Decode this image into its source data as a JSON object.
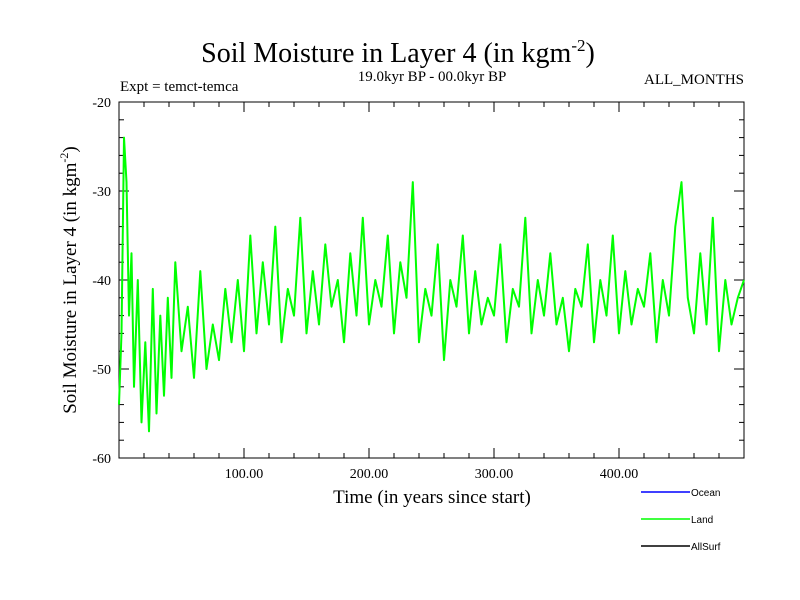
{
  "chart_data": {
    "type": "line",
    "title": "Soil Moisture in Layer 4 (in kgm",
    "title_sup": "-2",
    "title_close": ")",
    "subtitle": "19.0kyr BP - 00.0kyr BP",
    "expt_label": "Expt = temct-temca",
    "period_label": "ALL_MONTHS",
    "xlabel": "Time (in years since start)",
    "ylabel": "Soil Moisture in Layer 4 (in kgm",
    "ylabel_sup": "-2",
    "ylabel_close": ")",
    "xlim": [
      0,
      500
    ],
    "ylim": [
      -60,
      -20
    ],
    "x_ticks": [
      100,
      200,
      300,
      400
    ],
    "x_tick_labels": [
      "100.00",
      "200.00",
      "300.00",
      "400.00"
    ],
    "y_ticks": [
      -20,
      -30,
      -40,
      -50,
      -60
    ],
    "y_tick_labels": [
      "-20",
      "-30",
      "-40",
      "-50",
      "-60"
    ],
    "legend": [
      {
        "name": "Ocean",
        "color": "#0000ff"
      },
      {
        "name": "Land",
        "color": "#00ff00"
      },
      {
        "name": "AllSurf",
        "color": "#000000"
      }
    ],
    "series": [
      {
        "name": "Land",
        "color": "#00ff00",
        "x": [
          0,
          2,
          4,
          6,
          8,
          10,
          12,
          15,
          18,
          21,
          24,
          27,
          30,
          33,
          36,
          39,
          42,
          45,
          50,
          55,
          60,
          65,
          70,
          75,
          80,
          85,
          90,
          95,
          100,
          105,
          110,
          115,
          120,
          125,
          130,
          135,
          140,
          145,
          150,
          155,
          160,
          165,
          170,
          175,
          180,
          185,
          190,
          195,
          200,
          205,
          210,
          215,
          220,
          225,
          230,
          235,
          240,
          245,
          250,
          255,
          260,
          265,
          270,
          275,
          280,
          285,
          290,
          295,
          300,
          305,
          310,
          315,
          320,
          325,
          330,
          335,
          340,
          345,
          350,
          355,
          360,
          365,
          370,
          375,
          380,
          385,
          390,
          395,
          400,
          405,
          410,
          415,
          420,
          425,
          430,
          435,
          440,
          445,
          450,
          455,
          460,
          465,
          470,
          475,
          480,
          485,
          490,
          495,
          500
        ],
        "values": [
          -54,
          -46,
          -24,
          -29,
          -44,
          -37,
          -52,
          -40,
          -56,
          -47,
          -57,
          -41,
          -55,
          -44,
          -53,
          -42,
          -51,
          -38,
          -48,
          -43,
          -51,
          -39,
          -50,
          -45,
          -49,
          -41,
          -47,
          -40,
          -48,
          -35,
          -46,
          -38,
          -45,
          -34,
          -47,
          -41,
          -44,
          -33,
          -46,
          -39,
          -45,
          -36,
          -43,
          -40,
          -47,
          -37,
          -44,
          -33,
          -45,
          -40,
          -43,
          -35,
          -46,
          -38,
          -42,
          -29,
          -47,
          -41,
          -44,
          -36,
          -49,
          -40,
          -43,
          -35,
          -46,
          -39,
          -45,
          -42,
          -44,
          -36,
          -47,
          -41,
          -43,
          -33,
          -46,
          -40,
          -44,
          -37,
          -45,
          -42,
          -48,
          -41,
          -43,
          -36,
          -47,
          -40,
          -44,
          -35,
          -46,
          -39,
          -45,
          -41,
          -43,
          -37,
          -47,
          -40,
          -44,
          -34,
          -29,
          -42,
          -46,
          -37,
          -45,
          -33,
          -48,
          -40,
          -45,
          -42,
          -40
        ]
      },
      {
        "name": "Ocean",
        "color": "#0000ff",
        "values": []
      },
      {
        "name": "AllSurf",
        "color": "#000000",
        "values": []
      }
    ]
  }
}
